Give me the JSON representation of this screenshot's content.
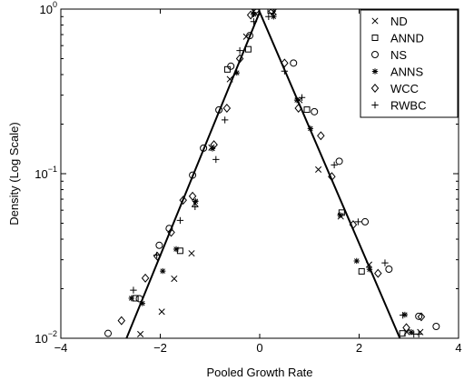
{
  "chart_data": {
    "type": "scatter",
    "xlabel": "Pooled Growth Rate",
    "ylabel": "Density (Log Scale)",
    "xlim": [
      -4,
      4
    ],
    "ylim": [
      0.01,
      1
    ],
    "y_scale": "log",
    "x_ticks": [
      -4,
      -2,
      0,
      2,
      4
    ],
    "x_tick_labels": [
      "−4",
      "−2",
      "0",
      "2",
      "4"
    ],
    "y_ticks": [
      0.01,
      0.1,
      1
    ],
    "y_tick_labels": [
      {
        "base": "10",
        "exp": "−2"
      },
      {
        "base": "10",
        "exp": "−1"
      },
      {
        "base": "10",
        "exp": "0"
      }
    ],
    "grid": false,
    "legend_position": "top-right",
    "fit_line": {
      "style": "solid",
      "points": [
        [
          -2.68,
          0.01
        ],
        [
          0,
          0.96
        ],
        [
          2.82,
          0.01
        ]
      ]
    },
    "series": [
      {
        "name": "ND",
        "marker": "x",
        "points": [
          [
            -2.4,
            0.0106
          ],
          [
            -1.97,
            0.0145
          ],
          [
            -1.72,
            0.023
          ],
          [
            -1.37,
            0.0328
          ],
          [
            -1.3,
            0.066
          ],
          [
            -0.97,
            0.144
          ],
          [
            -0.6,
            0.375
          ],
          [
            -0.27,
            0.68
          ],
          [
            -0.12,
            0.97
          ],
          [
            0.28,
            0.96
          ],
          [
            0.8,
            0.28
          ],
          [
            1.18,
            0.106
          ],
          [
            1.63,
            0.055
          ],
          [
            2.2,
            0.028
          ],
          [
            2.96,
            0.0109
          ],
          [
            3.23,
            0.0109
          ]
        ]
      },
      {
        "name": "ANND",
        "marker": "square",
        "points": [
          [
            -2.5,
            0.0175
          ],
          [
            -1.6,
            0.034
          ],
          [
            -0.65,
            0.43
          ],
          [
            -0.23,
            0.57
          ],
          [
            -0.07,
            0.96
          ],
          [
            0.22,
            0.98
          ],
          [
            0.95,
            0.245
          ],
          [
            1.65,
            0.058
          ],
          [
            2.05,
            0.0255
          ],
          [
            2.87,
            0.0107
          ]
        ]
      },
      {
        "name": "NS",
        "marker": "circle",
        "points": [
          [
            -3.05,
            0.0107
          ],
          [
            -2.42,
            0.0174
          ],
          [
            -2.02,
            0.0367
          ],
          [
            -1.82,
            0.0465
          ],
          [
            -1.35,
            0.098
          ],
          [
            -1.13,
            0.143
          ],
          [
            -0.82,
            0.244
          ],
          [
            -0.58,
            0.45
          ],
          [
            -0.2,
            0.69
          ],
          [
            -0.08,
            0.99
          ],
          [
            0.68,
            0.47
          ],
          [
            1.1,
            0.238
          ],
          [
            1.6,
            0.119
          ],
          [
            2.12,
            0.051
          ],
          [
            2.6,
            0.0263
          ],
          [
            3.2,
            0.0136
          ],
          [
            3.55,
            0.0118
          ]
        ]
      },
      {
        "name": "ANNS",
        "marker": "asterisk",
        "points": [
          [
            -2.58,
            0.0175
          ],
          [
            -2.36,
            0.0163
          ],
          [
            -1.95,
            0.0256
          ],
          [
            -1.68,
            0.0348
          ],
          [
            -1.29,
            0.068
          ],
          [
            -0.95,
            0.142
          ],
          [
            -0.46,
            0.41
          ],
          [
            -0.12,
            0.93
          ],
          [
            0.28,
            0.9
          ],
          [
            0.75,
            0.28
          ],
          [
            1.02,
            0.188
          ],
          [
            1.62,
            0.056
          ],
          [
            1.95,
            0.0295
          ],
          [
            2.21,
            0.0262
          ],
          [
            2.92,
            0.0139
          ],
          [
            3.05,
            0.0109
          ]
        ]
      },
      {
        "name": "WCC",
        "marker": "diamond",
        "points": [
          [
            -2.78,
            0.0128
          ],
          [
            -2.3,
            0.0232
          ],
          [
            -2.06,
            0.0315
          ],
          [
            -1.78,
            0.044
          ],
          [
            -1.54,
            0.069
          ],
          [
            -1.35,
            0.073
          ],
          [
            -0.92,
            0.15
          ],
          [
            -0.66,
            0.25
          ],
          [
            -0.4,
            0.5
          ],
          [
            -0.18,
            0.92
          ],
          [
            0.25,
            0.97
          ],
          [
            0.5,
            0.47
          ],
          [
            0.78,
            0.25
          ],
          [
            1.23,
            0.17
          ],
          [
            1.45,
            0.096
          ],
          [
            1.88,
            0.049
          ],
          [
            2.38,
            0.0248
          ],
          [
            2.95,
            0.0116
          ],
          [
            3.25,
            0.0135
          ]
        ]
      },
      {
        "name": "RWBC",
        "marker": "plus",
        "points": [
          [
            -2.54,
            0.0196
          ],
          [
            -2.07,
            0.032
          ],
          [
            -1.6,
            0.052
          ],
          [
            -1.3,
            0.063
          ],
          [
            -0.88,
            0.122
          ],
          [
            -0.7,
            0.212
          ],
          [
            -0.4,
            0.56
          ],
          [
            -0.12,
            0.84
          ],
          [
            0.18,
            0.9
          ],
          [
            0.5,
            0.42
          ],
          [
            0.85,
            0.29
          ],
          [
            1.5,
            0.113
          ],
          [
            1.98,
            0.051
          ],
          [
            2.52,
            0.0287
          ],
          [
            2.88,
            0.0138
          ],
          [
            3.1,
            0.0106
          ],
          [
            3.2,
            0.0106
          ]
        ]
      }
    ]
  }
}
